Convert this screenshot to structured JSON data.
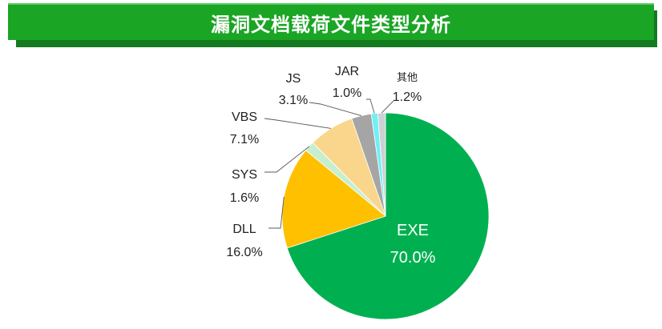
{
  "banner": {
    "title": "漏洞文档载荷文件类型分析"
  },
  "chart_data": {
    "type": "pie",
    "title": "漏洞文档载荷文件类型分析",
    "start_angle_deg": 0,
    "direction": "clockwise",
    "slices": [
      {
        "label": "EXE",
        "value": 70.0,
        "display": "70.0%",
        "color": "#00b050"
      },
      {
        "label": "DLL",
        "value": 16.0,
        "display": "16.0%",
        "color": "#ffc000"
      },
      {
        "label": "SYS",
        "value": 1.6,
        "display": "1.6%",
        "color": "#c6efce"
      },
      {
        "label": "VBS",
        "value": 7.1,
        "display": "7.1%",
        "color": "#f9d68c"
      },
      {
        "label": "JS",
        "value": 3.1,
        "display": "3.1%",
        "color": "#a5a5a5"
      },
      {
        "label": "JAR",
        "value": 1.0,
        "display": "1.0%",
        "color": "#6ff0f5"
      },
      {
        "label": "其他",
        "value": 1.2,
        "display": "1.2%",
        "color": "#cdd1d6"
      }
    ]
  }
}
